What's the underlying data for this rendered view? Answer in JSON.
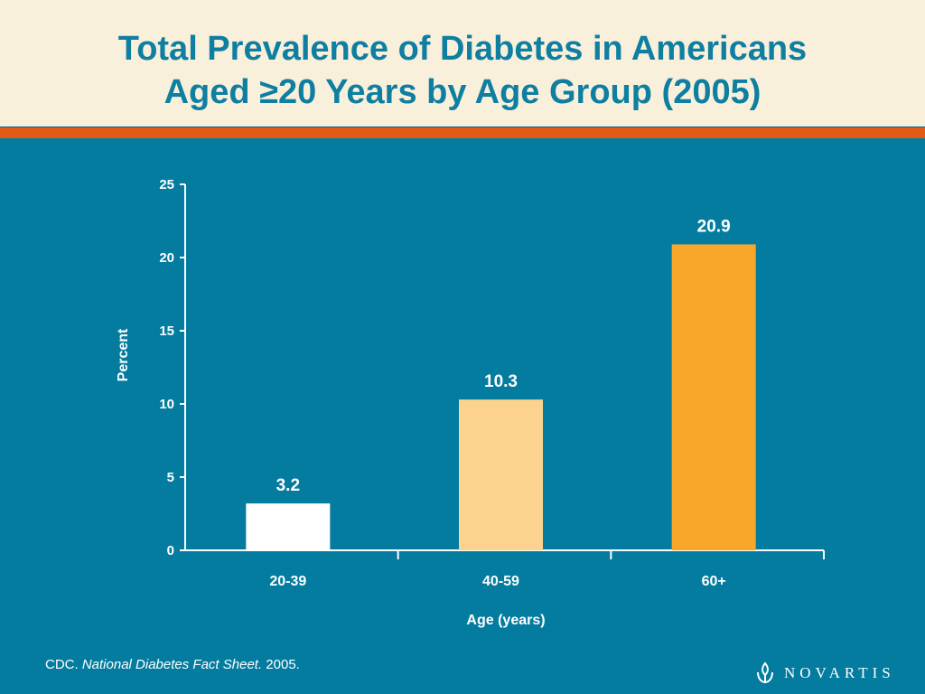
{
  "slide": {
    "title_line1": "Total Prevalence of Diabetes in Americans",
    "title_line2": "Aged ≥20 Years by Age Group (2005)",
    "source_prefix": "CDC. ",
    "source_title": "National Diabetes Fact Sheet.",
    "source_suffix": " 2005.",
    "logo_text": "NOVARTIS",
    "logo_icon": "novartis-flame-icon"
  },
  "colors": {
    "background": "#047ca0",
    "header_background": "#f9f0dc",
    "title": "#0f7fa1",
    "accent_stripe": "#e35a17",
    "bar_colors": [
      "#ffffff",
      "#fbd38e",
      "#f9a72b"
    ]
  },
  "chart_data": {
    "type": "bar",
    "categories": [
      "20-39",
      "40-59",
      "60+"
    ],
    "values": [
      3.2,
      10.3,
      20.9
    ],
    "value_labels": [
      "3.2",
      "10.3",
      "20.9"
    ],
    "xlabel": "Age (years)",
    "ylabel": "Percent",
    "ylim": [
      0,
      25
    ],
    "yticks": [
      0,
      5,
      10,
      15,
      20,
      25
    ],
    "grid": false,
    "legend": "none"
  }
}
